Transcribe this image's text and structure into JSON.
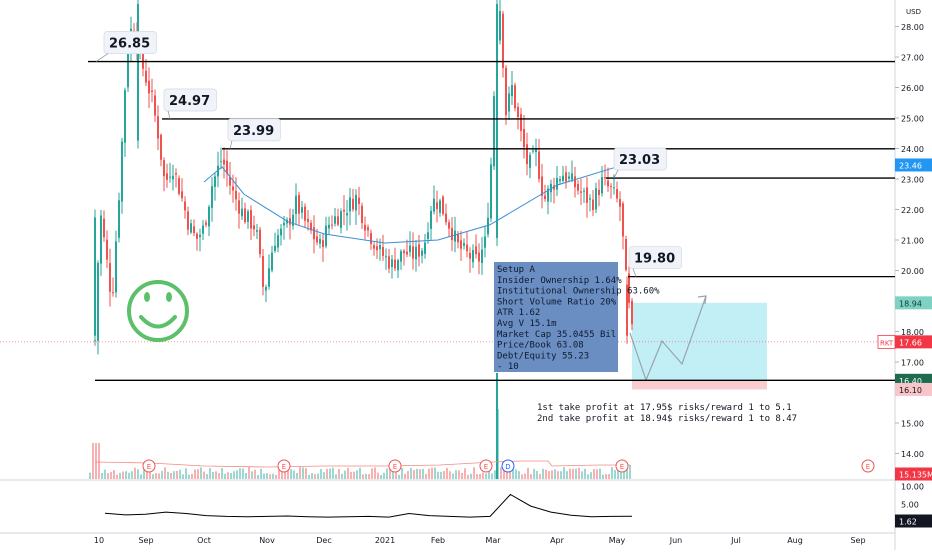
{
  "chart_data": [
    {
      "type": "candlestick",
      "currency_label": "USD",
      "symbol": "RKT",
      "last_price": "17.66",
      "ma_value": "23.46",
      "ylim": [
        13.3,
        29.1
      ],
      "y_ticks": [
        "28.00",
        "27.00",
        "26.00",
        "25.00",
        "24.00",
        "23.00",
        "22.00",
        "21.00",
        "20.00",
        "18.00",
        "17.00",
        "15.00",
        "14.00"
      ],
      "x_ticks": [
        "10",
        "Sep",
        "Oct",
        "Nov",
        "Dec",
        "2021",
        "Feb",
        "Mar",
        "Apr",
        "May",
        "Jun",
        "Jul",
        "Aug",
        "Sep"
      ],
      "resistance_levels": [
        {
          "value": 26.85,
          "label": "26.85"
        },
        {
          "value": 24.97,
          "label": "24.97"
        },
        {
          "value": 23.99,
          "label": "23.99"
        },
        {
          "value": 23.03,
          "label": "23.03"
        },
        {
          "value": 19.8,
          "label": "19.80"
        }
      ],
      "support_level": 16.4,
      "price_badges": [
        {
          "value": 23.46,
          "text": "23.46",
          "kind": "ma"
        },
        {
          "value": 18.94,
          "text": "18.94",
          "kind": "target"
        },
        {
          "value": 17.66,
          "text": "17.66",
          "kind": "last",
          "prefix": "RKT"
        },
        {
          "value": 16.4,
          "text": "16.40",
          "kind": "entry"
        },
        {
          "value": 16.1,
          "text": "16.10",
          "kind": "stop"
        }
      ],
      "position": {
        "target": 18.94,
        "entry": 16.4,
        "stop": 16.1
      },
      "setup_box": [
        "Setup A",
        "Insider Ownership 1.64%",
        "Institutional Ownership 63.60%",
        "Short Volume Ratio 20%",
        "ATR 1.62",
        "Avg V 15.1m",
        "Market Cap 35.0455 Bil",
        "Price/Book 63.08",
        "Debt/Equity 55.23",
        "- 10"
      ],
      "notes": [
        "1st take profit at 17.95$ risks/reward 1 to 5.1",
        "2nd take profit at 18.94$ risks/reward 1 to 8.47"
      ],
      "volume_badge": "15.135M",
      "earnings_markers": [
        "E",
        "E",
        "E",
        "E",
        "E",
        "E"
      ],
      "dividend_markers": [
        "D"
      ],
      "moving_average": [
        {
          "x": "Oct",
          "y": 22.9
        },
        {
          "x": "Oct",
          "y": 23.4
        },
        {
          "x": "Nov",
          "y": 22.5
        },
        {
          "x": "Nov",
          "y": 21.6
        },
        {
          "x": "Dec",
          "y": 21.2
        },
        {
          "x": "2021",
          "y": 20.9
        },
        {
          "x": "Feb",
          "y": 21.0
        },
        {
          "x": "Mar",
          "y": 21.5
        },
        {
          "x": "Apr",
          "y": 22.8
        },
        {
          "x": "May",
          "y": 23.4
        }
      ],
      "notable_candles": [
        {
          "x": "10",
          "low": 17.6,
          "high": 22.0
        },
        {
          "x": "Sep",
          "low": 24.0,
          "high": 29.0
        },
        {
          "x": "Mar",
          "low": 20.8,
          "high": 29.0
        },
        {
          "x": "May",
          "low": 17.6,
          "high": 19.8
        }
      ]
    },
    {
      "type": "line",
      "indicator": "ATR",
      "y_ticks": [
        "10.00",
        "5.00"
      ],
      "current_value": "1.62",
      "values": [
        2.5,
        2.0,
        2.2,
        2.8,
        2.4,
        1.8,
        1.6,
        1.5,
        1.6,
        1.7,
        1.5,
        1.4,
        1.5,
        1.6,
        1.4,
        2.4,
        1.8,
        1.6,
        1.4,
        1.6,
        7.8,
        4.5,
        2.8,
        1.9,
        1.5,
        1.6,
        1.62
      ]
    }
  ]
}
